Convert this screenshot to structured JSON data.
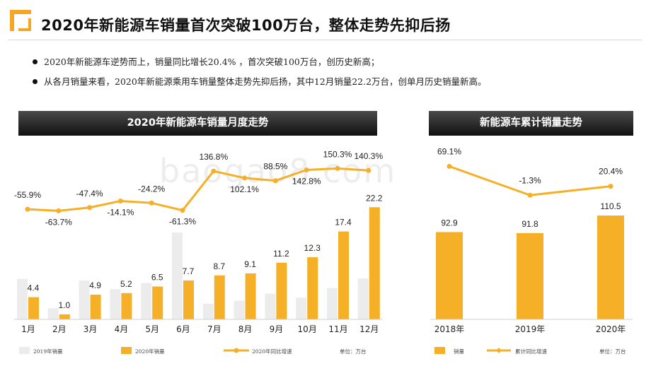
{
  "title": "2020年新能源车销量首次突破100万台，整体走势先抑后扬",
  "bullets": [
    "2020年新能源车逆势而上，销量同比增长20.4% ，首次突破100万台，创历史新高；",
    "从各月销量来看，2020年新能源乘用车销量整体走势先抑后扬，其中12月销量22.2万台，创单月历史销量新高。"
  ],
  "watermark": "baogao8.com",
  "colors": {
    "bar2020": "#F5B027",
    "bar2019": "#ECECEC",
    "line": "#F5B027",
    "banner": "#2a2a2a"
  },
  "chart_data": [
    {
      "type": "bar",
      "title": "2020年新能源车销量月度走势",
      "categories": [
        "1月",
        "2月",
        "3月",
        "4月",
        "5月",
        "6月",
        "7月",
        "8月",
        "9月",
        "10月",
        "11月",
        "12月"
      ],
      "series": [
        {
          "name": "2019年销量",
          "values": [
            8.0,
            2.2,
            7.7,
            6.0,
            7.2,
            17.2,
            3.1,
            3.7,
            5.1,
            4.3,
            6.2,
            8.1
          ]
        },
        {
          "name": "2020年销量",
          "values": [
            4.4,
            1.0,
            4.9,
            5.2,
            6.5,
            7.7,
            8.7,
            9.1,
            11.2,
            12.3,
            17.4,
            22.2
          ]
        },
        {
          "name": "2020年同比增速",
          "type": "line",
          "values": [
            -55.9,
            -63.7,
            -47.4,
            -14.1,
            -24.2,
            -61.3,
            136.8,
            102.1,
            88.5,
            142.8,
            150.3,
            140.3
          ]
        }
      ],
      "bar_labels": [
        "4.4",
        "1.0",
        "4.9",
        "5.2",
        "6.5",
        "7.7",
        "8.7",
        "9.1",
        "11.2",
        "12.3",
        "17.4",
        "22.2"
      ],
      "line_labels": [
        "-55.9%",
        "-63.7%",
        "-47.4%",
        "-14.1%",
        "-24.2%",
        "-61.3%",
        "136.8%",
        "102.1%",
        "88.5%",
        "142.8%",
        "150.3%",
        "140.3%"
      ],
      "unit": "单位：万台",
      "legend": [
        "2019年销量",
        "2020年销量",
        "2020年同比增速"
      ],
      "legend_position": "bottom"
    },
    {
      "type": "bar",
      "title": "新能源车累计销量走势",
      "categories": [
        "2018年",
        "2019年",
        "2020年"
      ],
      "series": [
        {
          "name": "销量",
          "values": [
            92.9,
            91.8,
            110.5
          ]
        },
        {
          "name": "累计同比增速",
          "type": "line",
          "values": [
            69.1,
            -1.3,
            20.4
          ]
        }
      ],
      "bar_labels": [
        "92.9",
        "91.8",
        "110.5"
      ],
      "line_labels": [
        "69.1%",
        "-1.3%",
        "20.4%"
      ],
      "unit": "单位：万台",
      "legend": [
        "销量",
        "累计同比增速"
      ],
      "legend_position": "bottom"
    }
  ]
}
